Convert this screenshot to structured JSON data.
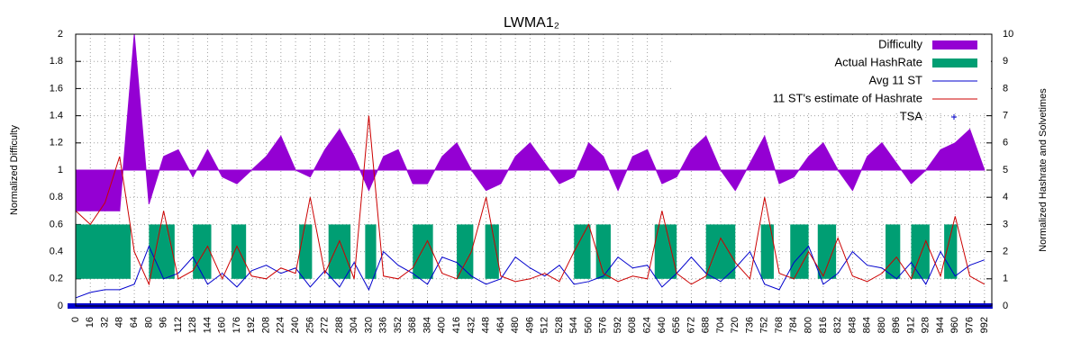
{
  "chart_data": {
    "type": "line",
    "title": "LWMA1₂",
    "ylabel": "Normalized Difficulty",
    "y2label": "Normalized Hashrate and Solvetimes",
    "legend": "top-right",
    "grid": true,
    "xlim": [
      0,
      1000
    ],
    "ylim": [
      0,
      2
    ],
    "y2lim": [
      0,
      10
    ],
    "yticks": [
      0,
      0.2,
      0.4,
      0.6,
      0.8,
      1,
      1.2,
      1.4,
      1.6,
      1.8,
      2
    ],
    "y2ticks": [
      0,
      1,
      2,
      3,
      4,
      5,
      6,
      7,
      8,
      9,
      10
    ],
    "xticks": [
      0,
      16,
      32,
      48,
      64,
      80,
      96,
      112,
      128,
      144,
      160,
      176,
      192,
      208,
      224,
      240,
      256,
      272,
      288,
      304,
      320,
      336,
      352,
      368,
      384,
      400,
      416,
      432,
      448,
      464,
      480,
      496,
      512,
      528,
      544,
      560,
      576,
      592,
      608,
      624,
      640,
      656,
      672,
      688,
      704,
      720,
      736,
      752,
      768,
      784,
      800,
      816,
      832,
      848,
      864,
      880,
      896,
      912,
      928,
      944,
      960,
      976,
      992
    ],
    "x": [
      0,
      16,
      32,
      48,
      64,
      80,
      96,
      112,
      128,
      144,
      160,
      176,
      192,
      208,
      224,
      240,
      256,
      272,
      288,
      304,
      320,
      336,
      352,
      368,
      384,
      400,
      416,
      432,
      448,
      464,
      480,
      496,
      512,
      528,
      544,
      560,
      576,
      592,
      608,
      624,
      640,
      656,
      672,
      688,
      704,
      720,
      736,
      752,
      768,
      784,
      800,
      816,
      832,
      848,
      864,
      880,
      896,
      912,
      928,
      944,
      960,
      976,
      992
    ],
    "series": [
      {
        "name": "Difficulty",
        "color": "#9400d3",
        "style": "area",
        "axis": "y",
        "fill_to": 1,
        "values": [
          0.7,
          0.7,
          0.7,
          0.7,
          2,
          0.75,
          1.1,
          1.15,
          0.95,
          1.15,
          0.95,
          0.9,
          1.0,
          1.1,
          1.25,
          1.0,
          0.95,
          1.15,
          1.3,
          1.1,
          0.85,
          1.1,
          1.15,
          0.9,
          0.9,
          1.1,
          1.2,
          1.0,
          0.85,
          0.9,
          1.1,
          1.2,
          1.05,
          0.9,
          0.95,
          1.2,
          1.1,
          0.85,
          1.1,
          1.15,
          0.9,
          0.95,
          1.15,
          1.25,
          1.0,
          0.85,
          1.05,
          1.25,
          0.9,
          0.95,
          1.1,
          1.2,
          1.0,
          0.85,
          1.1,
          1.2,
          1.05,
          0.9,
          1.0,
          1.15,
          1.2,
          1.3,
          1.0
        ]
      },
      {
        "name": "Actual HashRate",
        "color": "#009e73",
        "style": "step",
        "axis": "y2",
        "fill_to": 1,
        "x": [
          0,
          60,
          80,
          108,
          128,
          148,
          170,
          186,
          244,
          258,
          276,
          300,
          316,
          328,
          368,
          390,
          416,
          434,
          447,
          462,
          544,
          562,
          568,
          584,
          632,
          656,
          688,
          720,
          748,
          762,
          780,
          800,
          810,
          830,
          884,
          900,
          912,
          932,
          948,
          962
        ],
        "values": [
          3,
          1,
          3,
          1,
          3,
          1,
          3,
          1,
          3,
          1,
          3,
          1,
          3,
          1,
          3,
          1,
          3,
          1,
          3,
          1,
          3,
          1,
          3,
          1,
          3,
          1,
          3,
          1,
          3,
          1,
          3,
          1,
          3,
          1,
          3,
          1,
          3,
          1,
          3,
          1
        ]
      },
      {
        "name": "Avg 11 ST",
        "color": "#0000cd",
        "style": "line",
        "axis": "y2",
        "values": [
          0.3,
          0.5,
          0.6,
          0.6,
          0.8,
          2.2,
          1.0,
          1.2,
          1.8,
          0.8,
          1.2,
          0.7,
          1.3,
          1.5,
          1.2,
          1.4,
          0.7,
          1.3,
          0.7,
          1.6,
          0.6,
          2.0,
          1.5,
          1.2,
          0.8,
          1.8,
          1.6,
          1.1,
          0.8,
          1.0,
          1.8,
          1.4,
          1.1,
          1.5,
          0.8,
          0.9,
          1.1,
          1.8,
          1.4,
          1.5,
          0.7,
          1.2,
          1.8,
          1.2,
          0.9,
          1.4,
          2.0,
          0.8,
          0.6,
          1.6,
          2.2,
          0.8,
          1.2,
          2.0,
          1.5,
          1.4,
          1.0,
          1.6,
          0.8,
          2.0,
          1.1,
          1.5,
          1.7
        ]
      },
      {
        "name": "11 ST's estimate of Hashrate",
        "color": "#cc0000",
        "style": "line",
        "axis": "y2",
        "values": [
          3.5,
          3.0,
          3.8,
          5.5,
          2.0,
          0.8,
          3.5,
          1.0,
          1.3,
          2.2,
          1.0,
          2.2,
          1.1,
          1.0,
          1.4,
          1.2,
          4.0,
          1.2,
          2.4,
          1.0,
          7.0,
          1.1,
          1.0,
          1.4,
          2.4,
          1.2,
          1.0,
          2.0,
          4.0,
          1.1,
          0.9,
          1.0,
          1.2,
          0.9,
          2.0,
          3.0,
          1.2,
          0.9,
          1.1,
          1.0,
          3.5,
          1.2,
          0.8,
          1.1,
          2.5,
          1.6,
          1.0,
          4.0,
          1.2,
          1.0,
          2.0,
          1.1,
          2.5,
          1.1,
          0.9,
          1.2,
          1.8,
          1.0,
          2.4,
          1.1,
          3.3,
          1.1,
          0.8
        ]
      },
      {
        "name": "TSA",
        "color": "#0000cd",
        "style": "points",
        "axis": "y2",
        "values": [
          0,
          0,
          0,
          0,
          0,
          0,
          0,
          0,
          0,
          0,
          0,
          0,
          0,
          0,
          0,
          0,
          0,
          0,
          0,
          0,
          0,
          0,
          0,
          0,
          0,
          0,
          0,
          0,
          0,
          0,
          0,
          0,
          0,
          0,
          0,
          0,
          0,
          0,
          0,
          0,
          0,
          0,
          0,
          0,
          0,
          0,
          0,
          0,
          0,
          0,
          0,
          0,
          0,
          0,
          0,
          0,
          0,
          0,
          0,
          0,
          0,
          0,
          0
        ]
      }
    ]
  }
}
